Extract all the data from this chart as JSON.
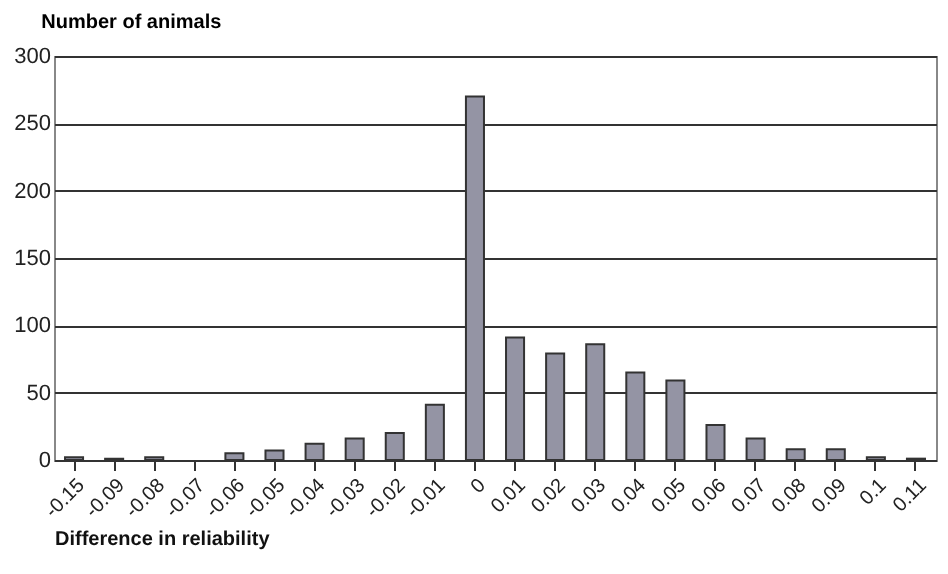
{
  "chart_data": {
    "type": "bar",
    "ylabel": "Number of animals",
    "xlabel": "Difference in reliability",
    "categories": [
      "-0.15",
      "-0.09",
      "-0.08",
      "-0.07",
      "-0.06",
      "-0.05",
      "-0.04",
      "-0.03",
      "-0.02",
      "-0.01",
      "0",
      "0.01",
      "0.02",
      "0.03",
      "0.04",
      "0.05",
      "0.06",
      "0.07",
      "0.08",
      "0.09",
      "0.1",
      "0.11"
    ],
    "values": [
      2,
      1,
      2,
      0,
      5,
      7,
      12,
      16,
      20,
      41,
      270,
      91,
      79,
      86,
      65,
      59,
      26,
      16,
      8,
      8,
      2,
      1
    ],
    "color": "#9494a4",
    "ylim": [
      0,
      300
    ],
    "yticks": [
      0,
      50,
      100,
      150,
      200,
      250,
      300
    ],
    "grid": "y"
  }
}
